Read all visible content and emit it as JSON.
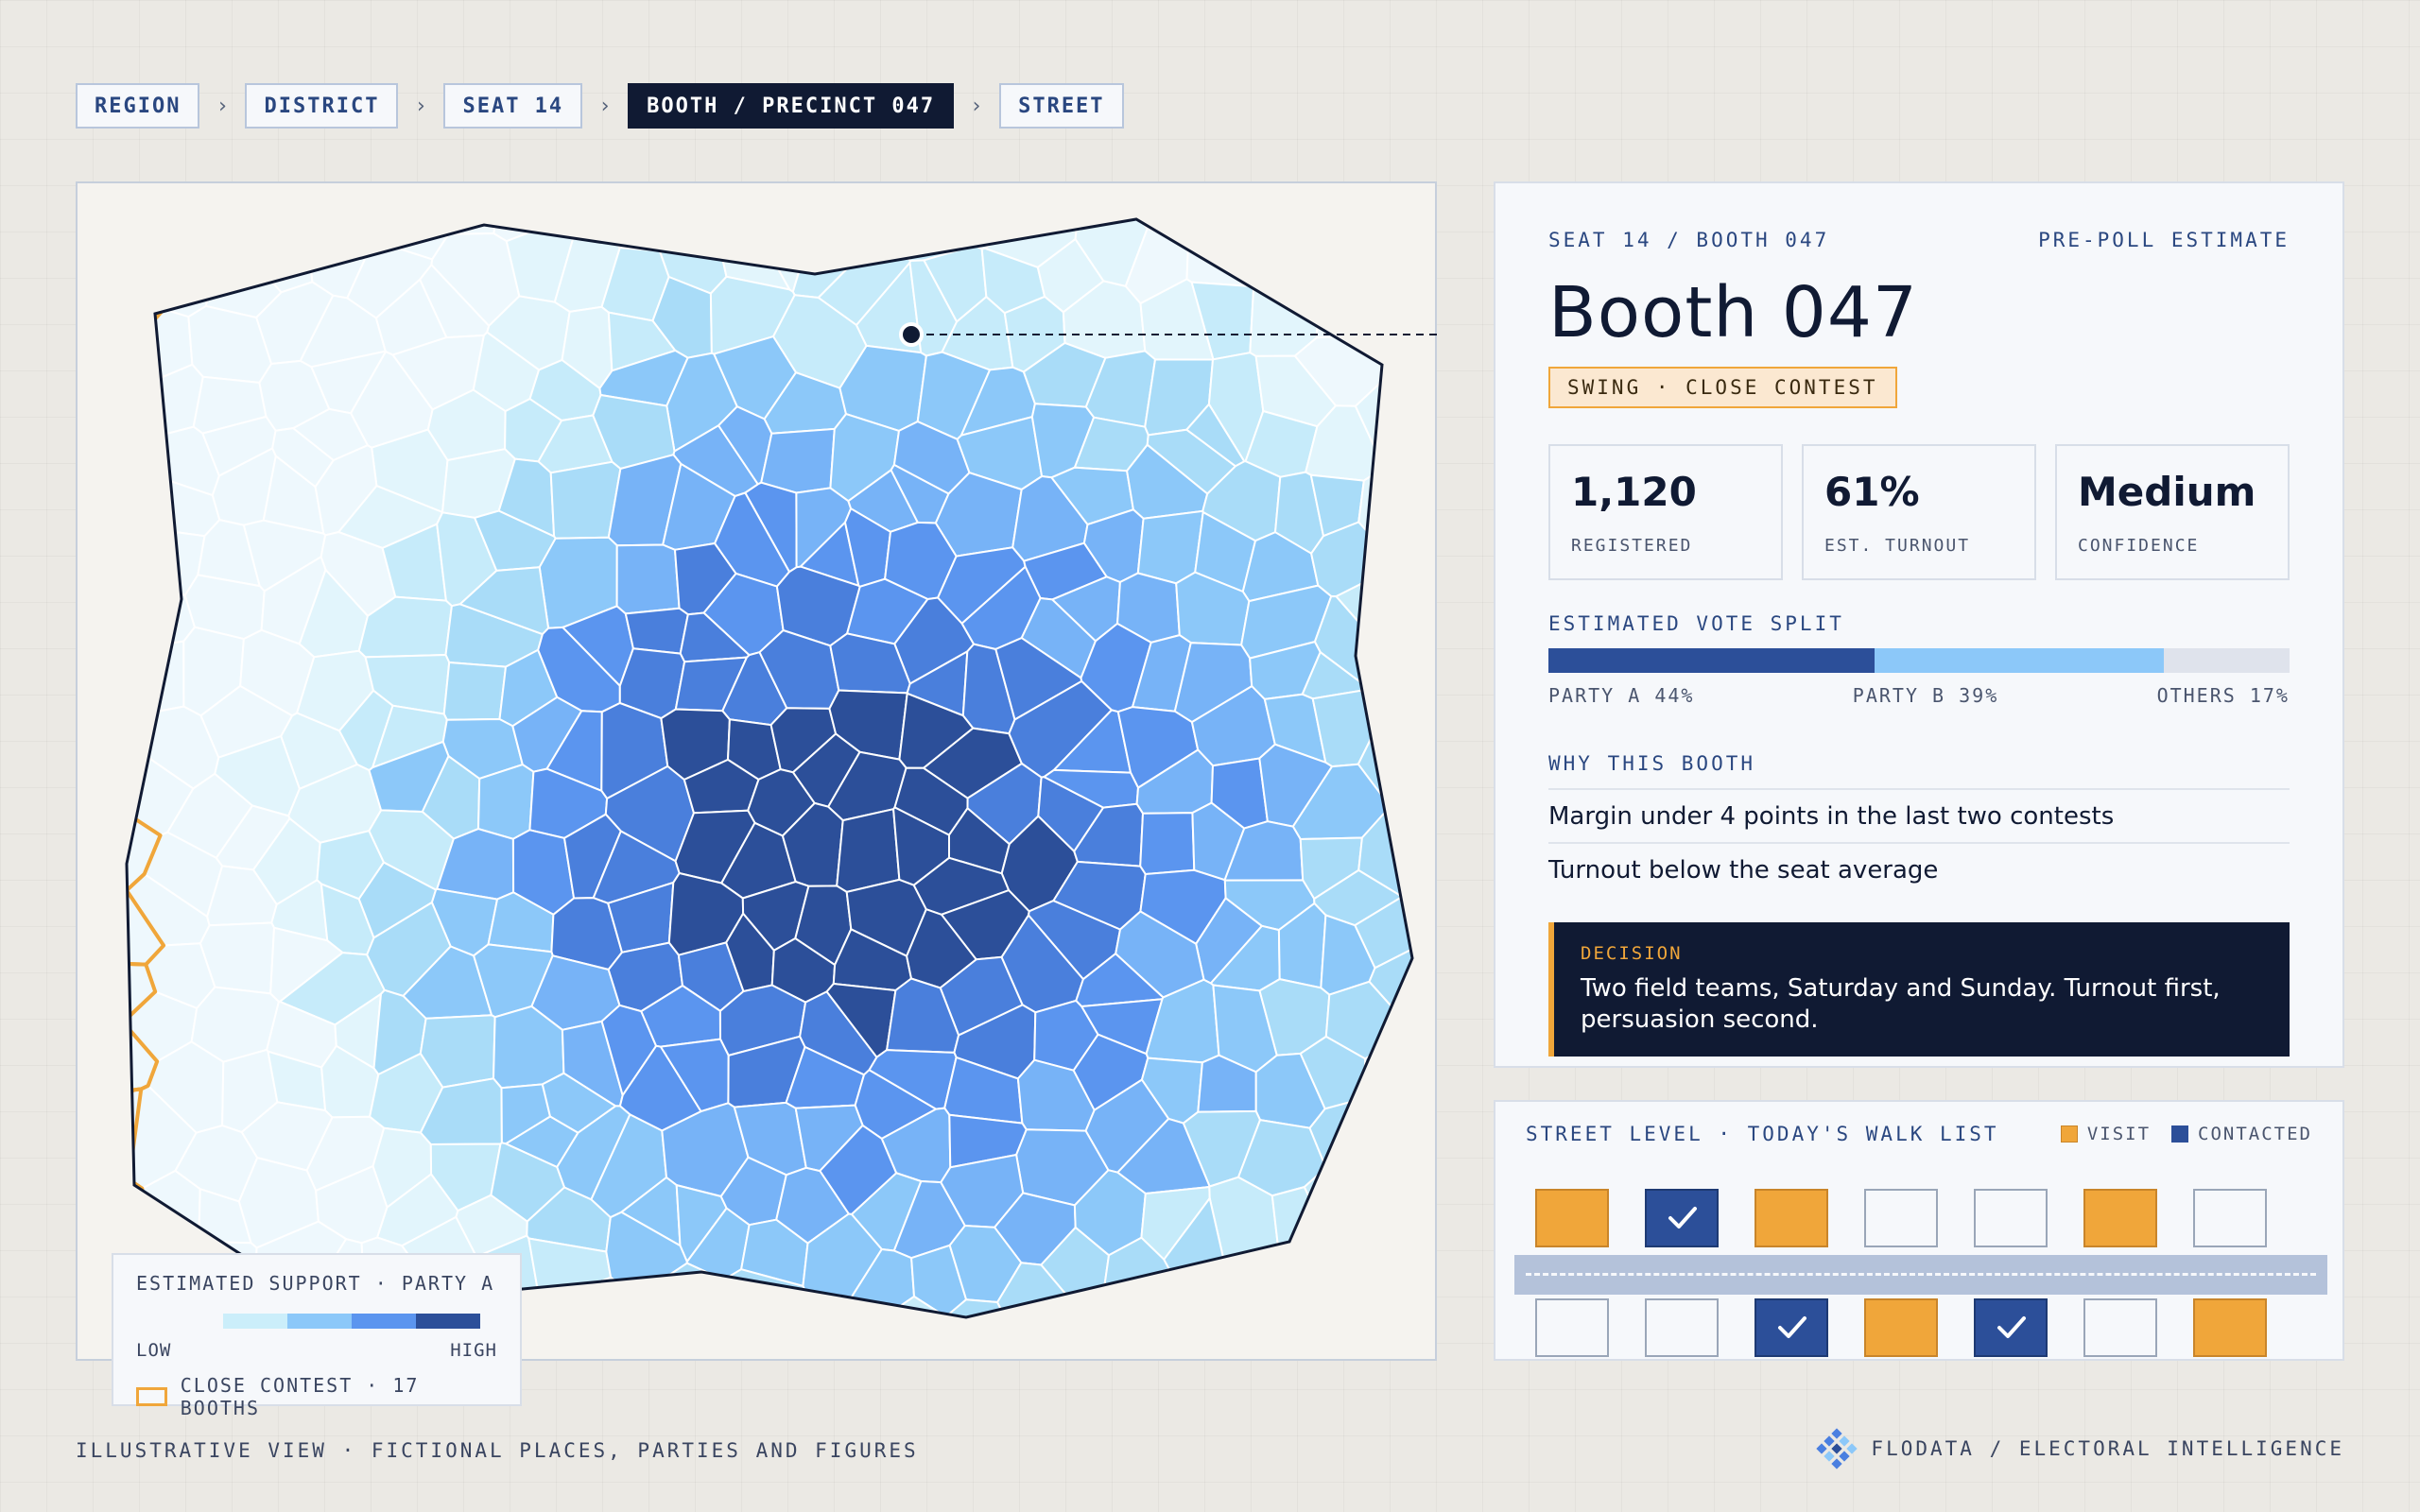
{
  "breadcrumb": {
    "items": [
      {
        "label": "REGION",
        "active": false
      },
      {
        "label": "DISTRICT",
        "active": false
      },
      {
        "label": "SEAT 14",
        "active": false
      },
      {
        "label": "BOOTH / PRECINCT 047",
        "active": true
      },
      {
        "label": "STREET",
        "active": false
      }
    ],
    "separator": "›"
  },
  "map": {
    "legend": {
      "title": "ESTIMATED SUPPORT · PARTY A",
      "low_label": "LOW",
      "high_label": "HIGH",
      "ramp_colors": [
        "#cbeefa",
        "#8cc8f9",
        "#5b95ef",
        "#2c4f99"
      ],
      "close_contest_label": "CLOSE CONTEST · 17 BOOTHS"
    },
    "colors": {
      "close_contest_outline": "#f0a63a",
      "boundary": "#101a33",
      "cell_edge": "#ffffff"
    },
    "selected_marker": "selected-booth-marker"
  },
  "detail": {
    "location": "SEAT 14 / BOOTH 047",
    "estimate_type": "PRE-POLL ESTIMATE",
    "title": "Booth 047",
    "badge": "SWING · CLOSE CONTEST",
    "stats": [
      {
        "value": "1,120",
        "label": "REGISTERED"
      },
      {
        "value": "61%",
        "label": "EST. TURNOUT"
      },
      {
        "value": "Medium",
        "label": "CONFIDENCE"
      }
    ],
    "vote_split": {
      "label": "ESTIMATED VOTE SPLIT",
      "segments": [
        {
          "name": "PARTY A",
          "share": 44,
          "text": "PARTY A 44%",
          "color": "#2c4f99"
        },
        {
          "name": "PARTY B",
          "share": 39,
          "text": "PARTY B 39%",
          "color": "#8cc8f9"
        },
        {
          "name": "OTHERS",
          "share": 17,
          "text": "OTHERS 17%",
          "color": "#dfe3ec"
        }
      ]
    },
    "why": {
      "label": "WHY THIS BOOTH",
      "items": [
        "Margin under 4 points in the last two contests",
        "Turnout below the seat average"
      ]
    },
    "decision": {
      "label": "DECISION",
      "text": "Two field teams, Saturday and Sunday. Turnout first, persuasion second."
    }
  },
  "street": {
    "title": "STREET LEVEL · TODAY'S WALK LIST",
    "legend_visit": "VISIT",
    "legend_contacted": "CONTACTED",
    "visit_color": "#f0a63a",
    "contacted_color": "#2c4f99",
    "top_row": [
      "visit",
      "contacted",
      "visit",
      "empty",
      "empty",
      "visit",
      "empty"
    ],
    "bottom_row": [
      "empty",
      "empty",
      "contacted",
      "visit",
      "contacted",
      "empty",
      "visit"
    ]
  },
  "footer": {
    "note": "ILLUSTRATIVE VIEW · FICTIONAL PLACES, PARTIES AND FIGURES",
    "brand": "FLODATA / ELECTORAL INTELLIGENCE",
    "brand_icon": "flodata-logo-icon"
  }
}
